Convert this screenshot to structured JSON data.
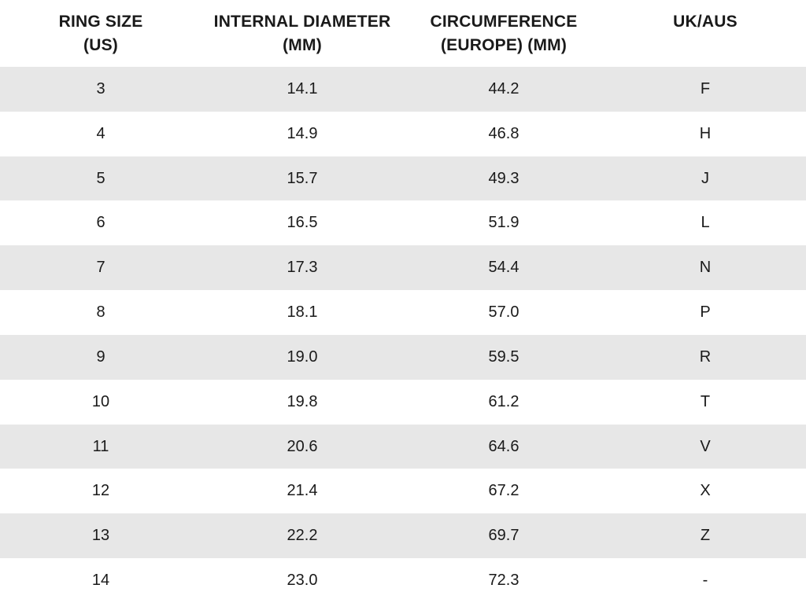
{
  "colors": {
    "stripe": "#e7e7e7",
    "background": "#ffffff",
    "text": "#1a1a1a"
  },
  "table": {
    "headers": [
      {
        "line1": "RING SIZE",
        "line2": "(US)"
      },
      {
        "line1": "INTERNAL DIAMETER",
        "line2": "(MM)"
      },
      {
        "line1": "CIRCUMFERENCE",
        "line2": "(EUROPE) (MM)"
      },
      {
        "line1": "UK/AUS",
        "line2": ""
      }
    ],
    "rows": [
      {
        "us": "3",
        "diameter_mm": "14.1",
        "circumference_mm": "44.2",
        "uk_aus": "F"
      },
      {
        "us": "4",
        "diameter_mm": "14.9",
        "circumference_mm": "46.8",
        "uk_aus": "H"
      },
      {
        "us": "5",
        "diameter_mm": "15.7",
        "circumference_mm": "49.3",
        "uk_aus": "J"
      },
      {
        "us": "6",
        "diameter_mm": "16.5",
        "circumference_mm": "51.9",
        "uk_aus": "L"
      },
      {
        "us": "7",
        "diameter_mm": "17.3",
        "circumference_mm": "54.4",
        "uk_aus": "N"
      },
      {
        "us": "8",
        "diameter_mm": "18.1",
        "circumference_mm": "57.0",
        "uk_aus": "P"
      },
      {
        "us": "9",
        "diameter_mm": "19.0",
        "circumference_mm": "59.5",
        "uk_aus": "R"
      },
      {
        "us": "10",
        "diameter_mm": "19.8",
        "circumference_mm": "61.2",
        "uk_aus": "T"
      },
      {
        "us": "11",
        "diameter_mm": "20.6",
        "circumference_mm": "64.6",
        "uk_aus": "V"
      },
      {
        "us": "12",
        "diameter_mm": "21.4",
        "circumference_mm": "67.2",
        "uk_aus": "X"
      },
      {
        "us": "13",
        "diameter_mm": "22.2",
        "circumference_mm": "69.7",
        "uk_aus": "Z"
      },
      {
        "us": "14",
        "diameter_mm": "23.0",
        "circumference_mm": "72.3",
        "uk_aus": "-"
      }
    ]
  },
  "chart_data": {
    "type": "table",
    "title": "",
    "columns": [
      "RING SIZE (US)",
      "INTERNAL DIAMETER (MM)",
      "CIRCUMFERENCE (EUROPE) (MM)",
      "UK/AUS"
    ],
    "rows": [
      [
        "3",
        "14.1",
        "44.2",
        "F"
      ],
      [
        "4",
        "14.9",
        "46.8",
        "H"
      ],
      [
        "5",
        "15.7",
        "49.3",
        "J"
      ],
      [
        "6",
        "16.5",
        "51.9",
        "L"
      ],
      [
        "7",
        "17.3",
        "54.4",
        "N"
      ],
      [
        "8",
        "18.1",
        "57.0",
        "P"
      ],
      [
        "9",
        "19.0",
        "59.5",
        "R"
      ],
      [
        "10",
        "19.8",
        "61.2",
        "T"
      ],
      [
        "11",
        "20.6",
        "64.6",
        "V"
      ],
      [
        "12",
        "21.4",
        "67.2",
        "X"
      ],
      [
        "13",
        "22.2",
        "69.7",
        "Z"
      ],
      [
        "14",
        "23.0",
        "72.3",
        "-"
      ]
    ],
    "layout": {
      "striped_rows": "odd",
      "stripe_color": "#e7e7e7",
      "text_align": "center",
      "grid": false,
      "legend": false
    }
  }
}
